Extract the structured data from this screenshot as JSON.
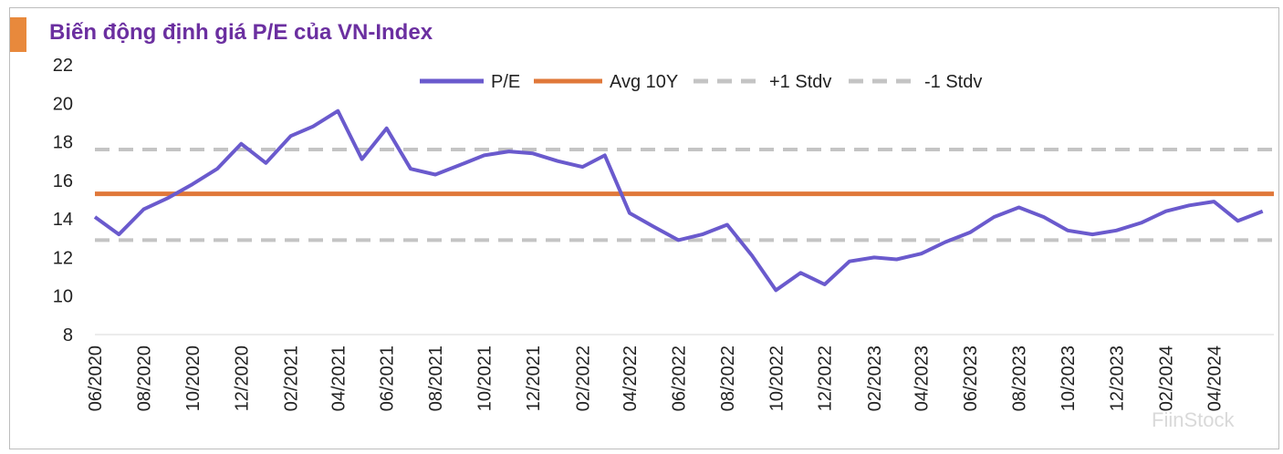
{
  "title": "Biến động định giá P/E của VN-Index",
  "colors": {
    "accent": "#e8893c",
    "title": "#6b2fa0",
    "pe_line": "#6a5acd",
    "avg_line": "#e0783a",
    "stdv_line": "#c4c4c4"
  },
  "watermark": "FiinStock",
  "chart_data": {
    "type": "line",
    "title": "Biến động định giá P/E của VN-Index",
    "xlabel": "",
    "ylabel": "",
    "ylim": [
      8,
      22
    ],
    "y_ticks": [
      "22",
      "20",
      "18",
      "16",
      "14",
      "12",
      "10",
      "8"
    ],
    "x_ticks": [
      "06/2020",
      "08/2020",
      "10/2020",
      "12/2020",
      "02/2021",
      "04/2021",
      "06/2021",
      "08/2021",
      "10/2021",
      "12/2021",
      "02/2022",
      "04/2022",
      "06/2022",
      "08/2022",
      "10/2022",
      "12/2022",
      "02/2023",
      "04/2023",
      "06/2023",
      "08/2023",
      "10/2023",
      "12/2023",
      "02/2024",
      "04/2024"
    ],
    "x_range": [
      "2020-06",
      "2024-06"
    ],
    "grid": false,
    "legend_position": "top",
    "series": [
      {
        "name": "P/E",
        "style": "solid",
        "x": [
          "2020-06",
          "2020-07",
          "2020-08",
          "2020-09",
          "2020-10",
          "2020-11",
          "2020-12",
          "2021-01",
          "2021-02",
          "2021-03",
          "2021-04",
          "2021-05",
          "2021-06",
          "2021-07",
          "2021-08",
          "2021-09",
          "2021-10",
          "2021-11",
          "2021-12",
          "2022-01",
          "2022-02",
          "2022-03",
          "2022-04",
          "2022-05",
          "2022-06",
          "2022-07",
          "2022-08",
          "2022-09",
          "2022-10",
          "2022-11",
          "2022-12",
          "2023-01",
          "2023-02",
          "2023-03",
          "2023-04",
          "2023-05",
          "2023-06",
          "2023-07",
          "2023-08",
          "2023-09",
          "2023-10",
          "2023-11",
          "2023-12",
          "2024-01",
          "2024-02",
          "2024-03",
          "2024-04",
          "2024-05",
          "2024-06"
        ],
        "values": [
          14.1,
          13.2,
          14.5,
          15.1,
          15.8,
          16.6,
          17.9,
          16.9,
          18.3,
          18.8,
          19.6,
          17.1,
          18.7,
          16.6,
          16.3,
          16.8,
          17.3,
          17.5,
          17.4,
          17.0,
          16.7,
          17.3,
          14.3,
          13.6,
          12.9,
          13.2,
          13.7,
          12.1,
          10.3,
          11.2,
          10.6,
          11.8,
          12.0,
          11.9,
          12.2,
          12.8,
          13.3,
          14.1,
          14.6,
          14.1,
          13.4,
          13.2,
          13.4,
          13.8,
          14.4,
          14.7,
          14.9,
          13.9,
          14.4
        ]
      },
      {
        "name": "Avg 10Y",
        "style": "solid",
        "values": [
          15.3
        ]
      },
      {
        "name": "+1 Stdv",
        "style": "dashed",
        "values": [
          17.6
        ]
      },
      {
        "name": "-1 Stdv",
        "style": "dashed",
        "values": [
          12.9
        ]
      }
    ]
  }
}
